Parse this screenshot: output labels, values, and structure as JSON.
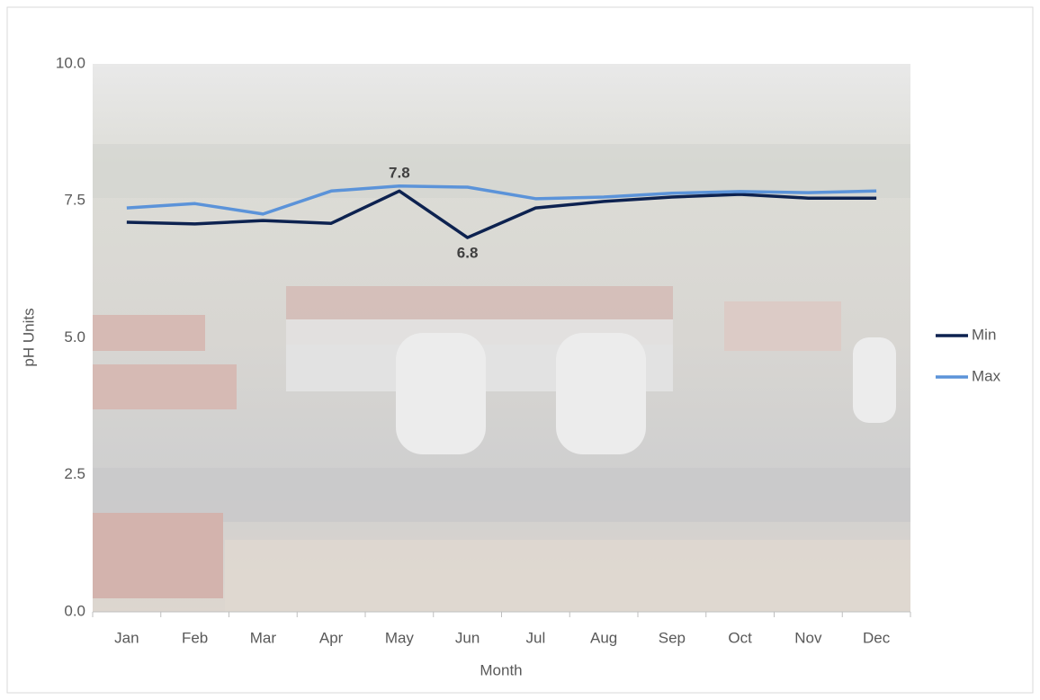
{
  "chart_data": {
    "type": "line",
    "x_label": "Month",
    "y_label": "pH Units",
    "categories": [
      "Jan",
      "Feb",
      "Mar",
      "Apr",
      "May",
      "Jun",
      "Jul",
      "Aug",
      "Sep",
      "Oct",
      "Nov",
      "Dec"
    ],
    "series": [
      {
        "name": "Min",
        "color": "#0d2250",
        "values": [
          7.11,
          7.08,
          7.14,
          7.09,
          7.68,
          6.83,
          7.37,
          7.49,
          7.57,
          7.62,
          7.55,
          7.55
        ],
        "value_labels": [
          null,
          null,
          null,
          null,
          null,
          "6.8",
          null,
          null,
          null,
          null,
          null,
          null
        ]
      },
      {
        "name": "Max",
        "color": "#5b93d9",
        "values": [
          7.37,
          7.45,
          7.26,
          7.68,
          7.77,
          7.75,
          7.54,
          7.57,
          7.64,
          7.67,
          7.65,
          7.68
        ],
        "value_labels": [
          null,
          null,
          null,
          null,
          "7.8",
          null,
          null,
          null,
          null,
          null,
          null,
          null
        ]
      }
    ],
    "ylim": [
      0,
      10
    ],
    "yticks": [
      {
        "value": 0,
        "label": "0.0"
      },
      2.5,
      {
        "value": 5,
        "label": "5.0"
      },
      7.5,
      {
        "value": 10,
        "label": "10.0"
      }
    ],
    "grid": false,
    "legend": "right"
  }
}
